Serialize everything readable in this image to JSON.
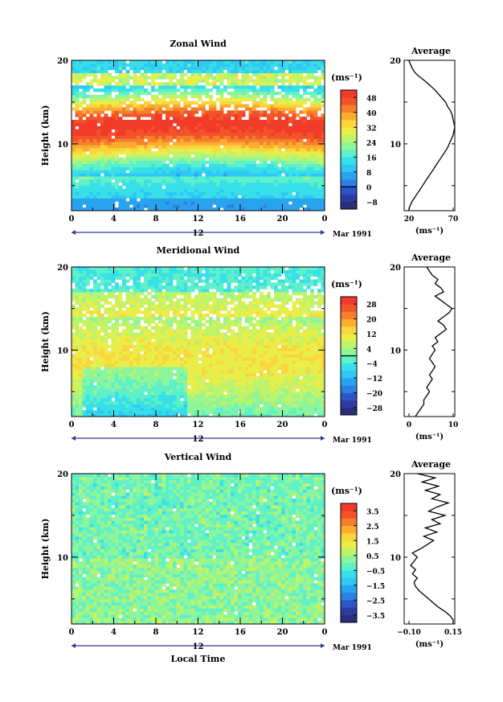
{
  "figure": {
    "date_label": "Mar 1991",
    "xlabel": "Local Time",
    "xtick_labels": [
      "0",
      "4",
      "8",
      "12",
      "16",
      "20",
      "0"
    ],
    "date_marker_label": "12",
    "ylabel": "Height (km)",
    "ytick_labels": [
      "20",
      "10"
    ],
    "units_label": "(ms⁻¹)",
    "profile_title": "Average"
  },
  "chart_data": [
    {
      "type": "heatmap",
      "title": "Zonal Wind",
      "xlabel": "",
      "ylabel": "Height (km)",
      "xlim": [
        0,
        24
      ],
      "ylim": [
        2,
        20
      ],
      "colorbar": {
        "ticks": [
          48,
          40,
          32,
          24,
          16,
          8,
          0,
          -8
        ],
        "range": [
          -12,
          52
        ],
        "zero_line": 0
      },
      "description_values": {
        "core_max_height_km": 12,
        "core_speed_ms": 50
      },
      "profile": {
        "title": "Average",
        "xlabel": "(ms⁻¹)",
        "xlim": [
          15,
          70
        ],
        "xtick_labels": [
          "20",
          "70"
        ],
        "ytick_labels": [
          "20",
          "10"
        ],
        "height_km": [
          2,
          2.5,
          3,
          3.5,
          4,
          4.5,
          5,
          5.5,
          6,
          6.5,
          7,
          7.5,
          8,
          8.5,
          9,
          9.5,
          10,
          10.5,
          11,
          11.5,
          12,
          12.5,
          13,
          13.5,
          14,
          14.5,
          15,
          15.5,
          16,
          16.5,
          17,
          17.5,
          18,
          18.5,
          19,
          19.5,
          20
        ],
        "values": [
          20,
          21,
          23,
          26,
          29,
          32,
          35,
          38,
          41,
          44,
          47,
          50,
          53,
          56,
          59,
          62,
          64,
          66,
          68,
          69,
          70,
          69,
          68,
          67,
          65,
          62,
          60,
          56,
          52,
          48,
          43,
          38,
          32,
          27,
          24,
          22,
          20
        ]
      }
    },
    {
      "type": "heatmap",
      "title": "Meridional Wind",
      "xlabel": "",
      "ylabel": "Height (km)",
      "xlim": [
        0,
        24
      ],
      "ylim": [
        2,
        20
      ],
      "colorbar": {
        "ticks": [
          28,
          20,
          12,
          4,
          -4,
          -12,
          -20,
          -28
        ],
        "range": [
          -32,
          32
        ],
        "zero_line": 0
      },
      "profile": {
        "title": "Average",
        "xlabel": "(ms⁻¹)",
        "xlim": [
          -5,
          13
        ],
        "xtick_labels": [
          "0",
          "10"
        ],
        "ytick_labels": [
          "20",
          "10"
        ],
        "height_km": [
          2,
          2.5,
          3,
          3.5,
          4,
          4.5,
          5,
          5.5,
          6,
          6.5,
          7,
          7.5,
          8,
          8.5,
          9,
          9.5,
          10,
          10.5,
          11,
          11.5,
          12,
          12.5,
          13,
          13.5,
          14,
          14.5,
          15,
          15.5,
          16,
          16.5,
          17,
          17.5,
          18,
          18.5,
          19,
          19.5,
          20
        ],
        "values": [
          -1,
          0,
          1,
          2,
          2,
          3,
          4,
          3,
          4,
          5,
          4,
          5,
          6,
          5,
          4,
          5,
          6,
          5,
          7,
          6,
          8,
          10,
          9,
          7,
          9,
          11,
          12,
          10,
          8,
          6,
          9,
          8,
          6,
          7,
          5,
          4,
          3
        ]
      }
    },
    {
      "type": "heatmap",
      "title": "Vertical Wind",
      "xlabel": "Local Time",
      "ylabel": "Height (km)",
      "xlim": [
        0,
        24
      ],
      "ylim": [
        2,
        20
      ],
      "colorbar": {
        "ticks": [
          3.5,
          2.5,
          1.5,
          0.5,
          -0.5,
          -1.5,
          -2.5,
          -3.5
        ],
        "range": [
          -4,
          4
        ]
      },
      "profile": {
        "title": "Average",
        "xlabel": "(ms⁻¹)",
        "xlim": [
          -0.15,
          0.16
        ],
        "xtick_labels": [
          "−0.10",
          "0.15"
        ],
        "ytick_labels": [
          "20",
          "10"
        ],
        "height_km": [
          2,
          2.5,
          3,
          3.5,
          4,
          4.5,
          5,
          5.5,
          6,
          6.5,
          7,
          7.5,
          8,
          8.5,
          9,
          9.5,
          10,
          10.5,
          11,
          11.5,
          12,
          12.5,
          13,
          13.5,
          14,
          14.5,
          15,
          15.5,
          16,
          16.5,
          17,
          17.5,
          18,
          18.5,
          19,
          19.5,
          20
        ],
        "values": [
          0.15,
          0.15,
          0.13,
          0.1,
          0.06,
          0.03,
          0.0,
          -0.03,
          -0.06,
          -0.08,
          -0.09,
          -0.07,
          -0.1,
          -0.08,
          -0.11,
          -0.09,
          -0.07,
          -0.1,
          -0.05,
          -0.01,
          0.03,
          -0.03,
          0.05,
          -0.02,
          0.07,
          0.02,
          0.1,
          0.0,
          0.05,
          0.12,
          0.02,
          0.07,
          -0.02,
          0.06,
          -0.04,
          0.04,
          -0.07
        ]
      }
    }
  ]
}
